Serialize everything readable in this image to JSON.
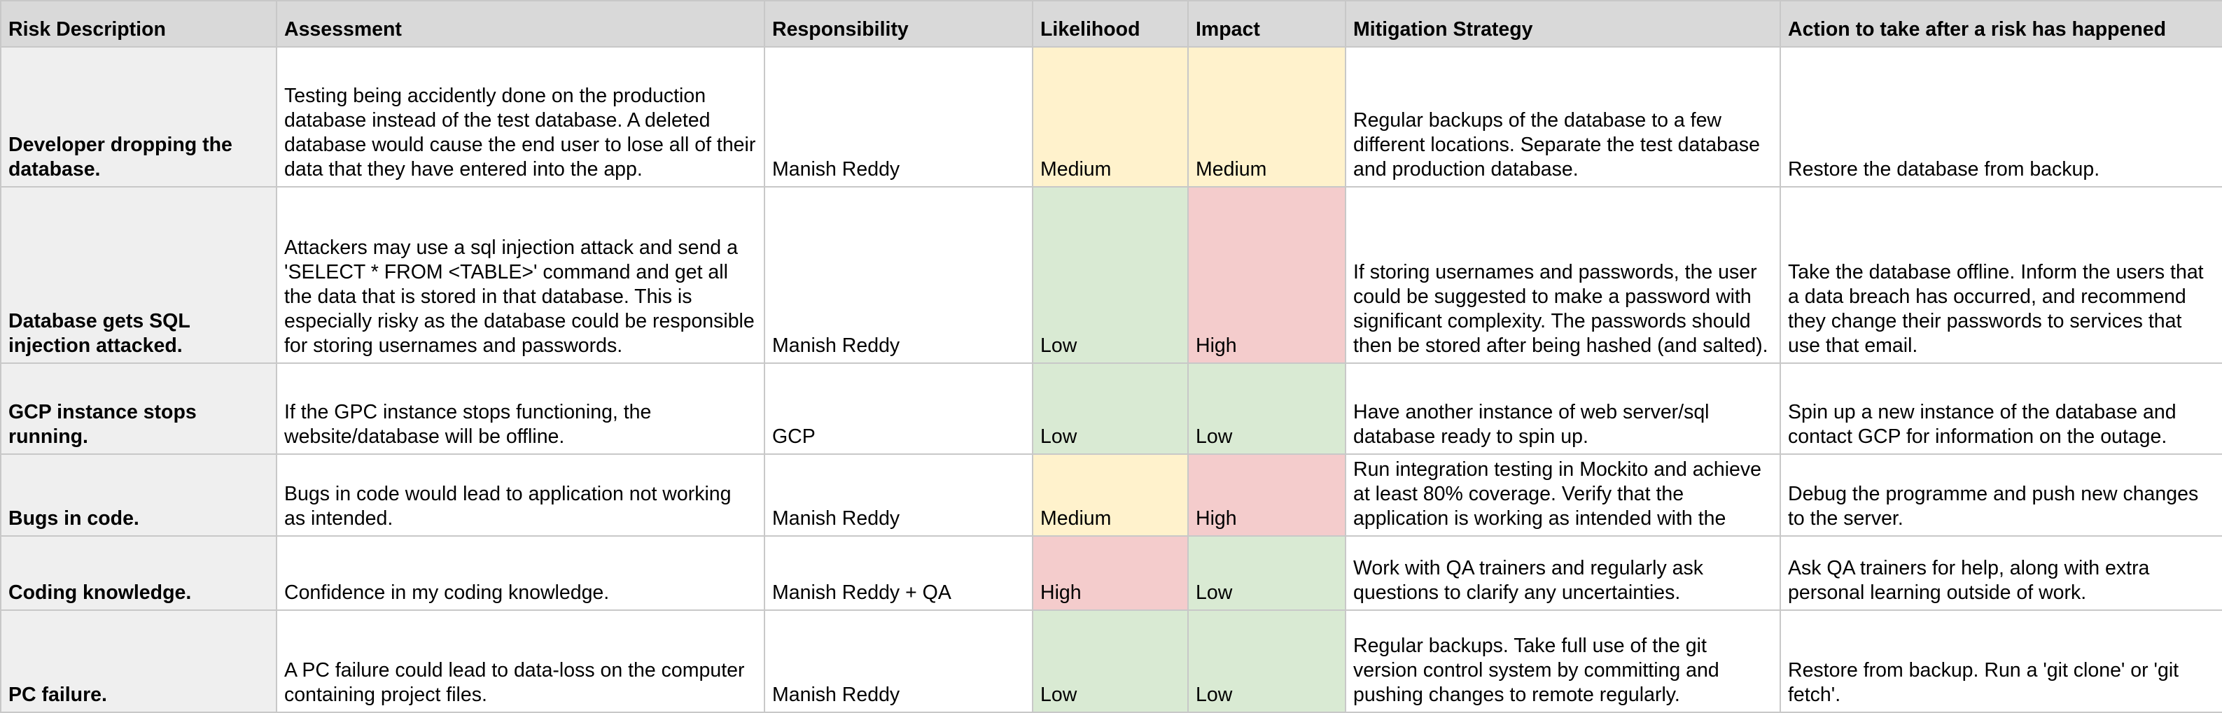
{
  "headers": {
    "risk_description": "Risk Description",
    "assessment": "Assessment",
    "responsibility": "Responsibility",
    "likelihood": "Likelihood",
    "impact": "Impact",
    "mitigation_strategy": "Mitigation Strategy",
    "action_after_risk": "Action to take after a risk has happened"
  },
  "level_colors": {
    "Low": "#d9ead3",
    "Medium": "#fff2cc",
    "High": "#f4cccc"
  },
  "rows": [
    {
      "risk_description": "Developer dropping the database.",
      "assessment": "Testing being accidently done on the production database instead of the test database. A deleted database would cause the end user to lose all of their data that they have entered into the app.",
      "responsibility": "Manish Reddy",
      "likelihood": "Medium",
      "impact": "Medium",
      "mitigation_strategy": "Regular backups of the database to a few different locations. Separate the test database and production database.",
      "action_after_risk": "Restore the database from backup."
    },
    {
      "risk_description": "Database gets SQL injection attacked.",
      "assessment": "Attackers may use a sql injection attack and send a 'SELECT * FROM <TABLE>' command and get all the data that is stored in that database. This is especially risky as the database could be responsible for storing usernames and passwords.",
      "responsibility": "Manish Reddy",
      "likelihood": "Low",
      "impact": "High",
      "mitigation_strategy": "If storing usernames and passwords, the user could be suggested to make a password with significant complexity. The passwords should then be stored after being hashed (and salted).",
      "action_after_risk": "Take the database offline. Inform the users that a data breach has occurred, and recommend they change their passwords to services that use that email."
    },
    {
      "risk_description": "GCP instance stops running.",
      "assessment": "If the GPC instance stops functioning, the website/database will be offline.",
      "responsibility": "GCP",
      "likelihood": "Low",
      "impact": "Low",
      "mitigation_strategy": "Have another instance of web server/sql database ready to spin up.",
      "action_after_risk": "Spin up a new instance of the database and contact GCP for information on the outage."
    },
    {
      "risk_description": "Bugs in code.",
      "assessment": "Bugs in code would lead to application not working as intended.",
      "responsibility": "Manish Reddy",
      "likelihood": "Medium",
      "impact": "High",
      "mitigation_strategy": "Run integration testing in Mockito and achieve at least 80% coverage. Verify that the application is working as intended with the",
      "action_after_risk": "Debug the programme and push new changes to the server."
    },
    {
      "risk_description": "Coding knowledge.",
      "assessment": "Confidence in my coding knowledge.",
      "responsibility": "Manish Reddy + QA",
      "likelihood": "High",
      "impact": "Low",
      "mitigation_strategy": "Work with QA trainers and regularly ask questions to clarify any uncertainties.",
      "action_after_risk": "Ask QA trainers for help, along with extra personal learning outside of work."
    },
    {
      "risk_description": "PC failure.",
      "assessment": "A PC failure could lead to data-loss on the computer containing project files.",
      "responsibility": "Manish Reddy",
      "likelihood": "Low",
      "impact": "Low",
      "mitigation_strategy": "Regular backups. Take full use of the git version control system by committing and pushing changes to remote regularly.",
      "action_after_risk": "Restore from backup. Run a 'git clone' or 'git fetch'."
    }
  ]
}
